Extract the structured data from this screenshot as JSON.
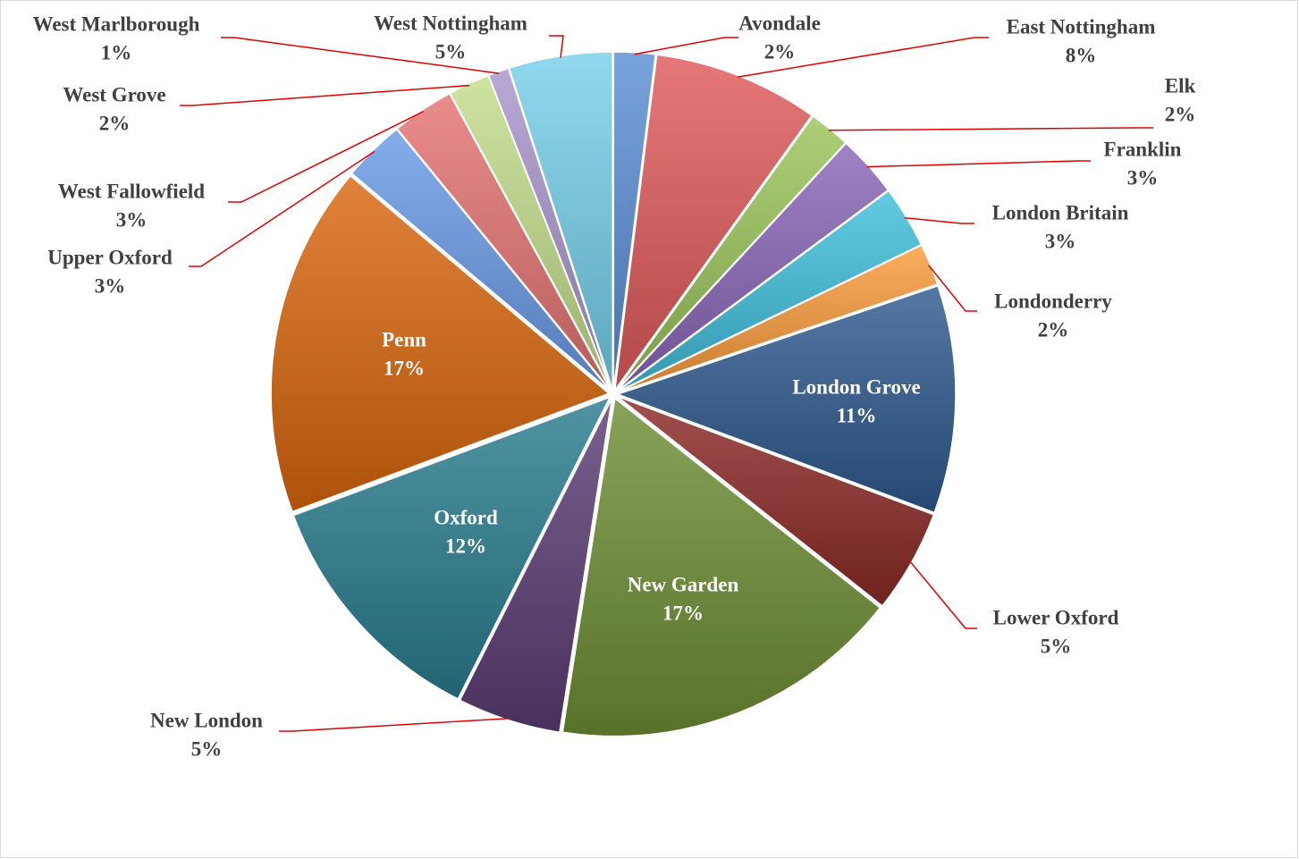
{
  "chart_data": {
    "type": "pie",
    "categories": [
      "Avondale",
      "East Nottingham",
      "Elk",
      "Franklin",
      "London Britain",
      "Londonderry",
      "London Grove",
      "Lower Oxford",
      "New Garden",
      "New London",
      "Oxford",
      "Penn",
      "Upper Oxford",
      "West Fallowfield",
      "West Grove",
      "West Marlborough",
      "West Nottingham"
    ],
    "values": [
      2,
      8,
      2,
      3,
      3,
      2,
      11,
      5,
      17,
      5,
      12,
      17,
      3,
      3,
      2,
      1,
      5
    ],
    "value_labels": [
      "2%",
      "8%",
      "2%",
      "3%",
      "3%",
      "2%",
      "11%",
      "5%",
      "17%",
      "5%",
      "12%",
      "17%",
      "3%",
      "3%",
      "2%",
      "1%",
      "5%"
    ],
    "colors": [
      "#5b8fd6",
      "#e05a5a",
      "#9bc45a",
      "#8a66b8",
      "#3fbfdc",
      "#fb9c3c",
      "#2e5a8e",
      "#8c2a27",
      "#6e8f35",
      "#5d3d74",
      "#2a7d8f",
      "#d9670e",
      "#6a9be6",
      "#e57373",
      "#c4dd8c",
      "#a895cc",
      "#76d0ea"
    ]
  }
}
